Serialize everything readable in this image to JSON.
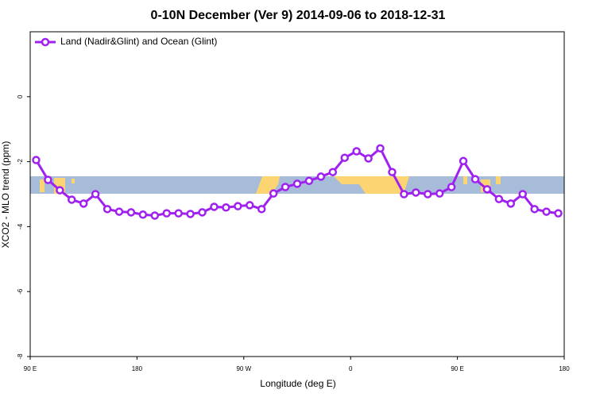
{
  "chart_data": {
    "type": "line",
    "title": "0-10N December (Ver 9)   2014-09-06 to 2018-12-31",
    "x_label": "Longitude (deg E)",
    "y_label": "XCO2 - MLO trend (ppm)",
    "x": [
      95,
      105,
      115,
      125,
      135,
      145,
      155,
      165,
      175,
      185,
      195,
      205,
      215,
      225,
      235,
      245,
      255,
      265,
      275,
      285,
      295,
      305,
      315,
      325,
      335,
      345,
      355,
      365,
      375,
      385,
      395,
      405,
      415,
      425,
      435,
      445,
      455,
      465,
      475,
      485,
      495,
      505,
      515,
      525,
      535
    ],
    "series": [
      {
        "name": "Land (Nadir&Glint) and Ocean (Glint)",
        "color": "#a020f0",
        "values": [
          -1.95,
          -2.56,
          -2.88,
          -3.17,
          -3.29,
          -3.0,
          -3.46,
          -3.54,
          -3.56,
          -3.63,
          -3.66,
          -3.59,
          -3.59,
          -3.61,
          -3.56,
          -3.39,
          -3.41,
          -3.37,
          -3.34,
          -3.46,
          -2.98,
          -2.78,
          -2.68,
          -2.59,
          -2.46,
          -2.32,
          -1.88,
          -1.68,
          -1.9,
          -1.59,
          -2.32,
          -3.0,
          -2.95,
          -3.0,
          -2.98,
          -2.78,
          -1.98,
          -2.54,
          -2.85,
          -3.15,
          -3.29,
          -3.0,
          -3.46,
          -3.54,
          -3.59
        ]
      }
    ],
    "xlim": [
      90,
      540
    ],
    "xticks": [
      {
        "value": 90,
        "label": "90 E"
      },
      180,
      {
        "value": 270,
        "label": "90 W"
      },
      {
        "value": 360,
        "label": "0"
      },
      {
        "value": 450,
        "label": "90 E"
      },
      {
        "value": 540,
        "label": "180"
      }
    ],
    "ylim": [
      -8,
      2
    ],
    "yticks": [
      -8,
      -6,
      -4,
      -2,
      0
    ],
    "legend": "top-left"
  }
}
